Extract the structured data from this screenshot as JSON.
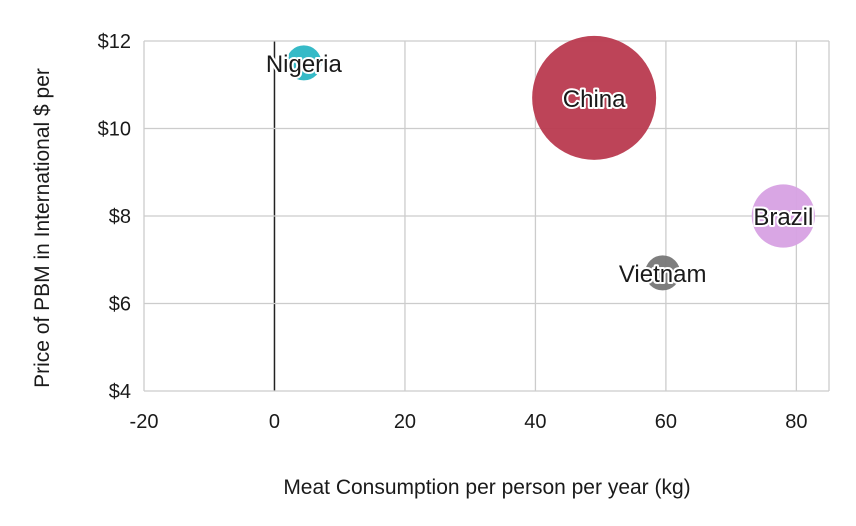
{
  "chart_data": {
    "type": "scatter",
    "xlabel": "Meat Consumption per person per year (kg)",
    "ylabel": "Price of PBM in International $ per",
    "xlim": [
      -20,
      85
    ],
    "ylim": [
      4,
      12
    ],
    "x_ticks": [
      "-20",
      "0",
      "20",
      "40",
      "60",
      "80"
    ],
    "y_ticks": [
      "$4",
      "$6",
      "$8",
      "$10",
      "$12"
    ],
    "grid": true,
    "points": [
      {
        "label": "Nigeria",
        "x": 4.5,
        "y": 11.5,
        "color": "#2bb6c4",
        "size": 0.08
      },
      {
        "label": "China",
        "x": 49,
        "y": 10.7,
        "color": "#b93a4f",
        "size": 1.0
      },
      {
        "label": "Brazil",
        "x": 78,
        "y": 8.0,
        "color": "#d7a1e3",
        "size": 0.26
      },
      {
        "label": "Vietnam",
        "x": 59.5,
        "y": 6.7,
        "color": "#777777",
        "size": 0.08
      }
    ]
  }
}
